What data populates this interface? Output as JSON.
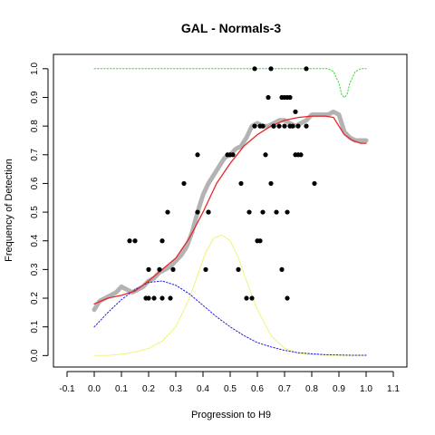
{
  "chart_data": {
    "type": "scatter",
    "title": "GAL - Normals-3",
    "xlabel": "Progression to H9",
    "ylabel": "Frequency of Detection",
    "xlim": [
      -0.15,
      1.15
    ],
    "ylim": [
      -0.04,
      1.05
    ],
    "x_ticks": [
      "-0.1",
      "0.0",
      "0.1",
      "0.2",
      "0.3",
      "0.4",
      "0.5",
      "0.6",
      "0.7",
      "0.8",
      "0.9",
      "1.0",
      "1.1"
    ],
    "y_ticks": [
      "0.0",
      "0.1",
      "0.2",
      "0.3",
      "0.4",
      "0.5",
      "0.6",
      "0.7",
      "0.8",
      "0.9",
      "1.0"
    ],
    "grid": false,
    "legend": "none",
    "colors": {
      "points": "#000000",
      "running_mean": "#b3b3b3",
      "fit": "#e8272b",
      "blue_curve": "#1b1bf0",
      "yellow_curve": "#f2f27a",
      "green_curve": "#33d633"
    },
    "series": [
      {
        "kind": "points",
        "x": [
          0.13,
          0.15,
          0.19,
          0.2,
          0.2,
          0.22,
          0.24,
          0.25,
          0.25,
          0.27,
          0.28,
          0.29,
          0.33,
          0.38,
          0.38,
          0.41,
          0.42,
          0.42,
          0.49,
          0.5,
          0.51,
          0.53,
          0.54,
          0.56,
          0.57,
          0.58,
          0.59,
          0.59,
          0.6,
          0.61,
          0.61,
          0.62,
          0.62,
          0.63,
          0.64,
          0.65,
          0.65,
          0.66,
          0.66,
          0.67,
          0.68,
          0.69,
          0.69,
          0.7,
          0.7,
          0.71,
          0.71,
          0.71,
          0.72,
          0.72,
          0.73,
          0.74,
          0.74,
          0.75,
          0.75,
          0.76,
          0.78,
          0.78,
          0.81
        ],
        "y": [
          0.4,
          0.4,
          0.2,
          0.3,
          0.2,
          0.2,
          0.3,
          0.4,
          0.2,
          0.5,
          0.2,
          0.3,
          0.6,
          0.5,
          0.7,
          0.3,
          0.5,
          0.5,
          0.7,
          0.7,
          0.7,
          0.3,
          0.6,
          0.2,
          0.5,
          0.2,
          0.8,
          1.0,
          0.4,
          0.4,
          0.8,
          0.8,
          0.5,
          0.7,
          0.9,
          0.6,
          1.0,
          0.8,
          0.8,
          0.5,
          0.8,
          0.3,
          0.9,
          0.8,
          0.9,
          0.5,
          0.9,
          0.2,
          0.9,
          0.8,
          0.8,
          0.7,
          0.85,
          0.7,
          0.8,
          0.7,
          0.8,
          1.0,
          0.6
        ]
      },
      {
        "kind": "line",
        "style": "thick-dotted",
        "x": [
          0.0,
          0.02,
          0.04,
          0.06,
          0.08,
          0.1,
          0.12,
          0.14,
          0.16,
          0.18,
          0.2,
          0.22,
          0.24,
          0.26,
          0.28,
          0.3,
          0.32,
          0.34,
          0.36,
          0.38,
          0.4,
          0.42,
          0.44,
          0.46,
          0.48,
          0.5,
          0.52,
          0.54,
          0.56,
          0.58,
          0.6,
          0.62,
          0.64,
          0.66,
          0.68,
          0.7,
          0.72,
          0.74,
          0.76,
          0.78,
          0.8,
          0.82,
          0.84,
          0.86,
          0.88,
          0.9,
          0.92,
          0.94,
          0.96,
          0.98,
          1.0
        ],
        "y": [
          0.16,
          0.19,
          0.2,
          0.21,
          0.22,
          0.24,
          0.23,
          0.22,
          0.23,
          0.24,
          0.26,
          0.27,
          0.29,
          0.3,
          0.31,
          0.33,
          0.35,
          0.38,
          0.43,
          0.5,
          0.56,
          0.6,
          0.63,
          0.66,
          0.69,
          0.7,
          0.72,
          0.73,
          0.76,
          0.8,
          0.81,
          0.8,
          0.8,
          0.81,
          0.82,
          0.82,
          0.81,
          0.8,
          0.81,
          0.82,
          0.84,
          0.84,
          0.84,
          0.84,
          0.85,
          0.84,
          0.78,
          0.76,
          0.75,
          0.75,
          0.75
        ]
      },
      {
        "kind": "line",
        "style": "solid",
        "x": [
          0.0,
          0.05,
          0.1,
          0.15,
          0.2,
          0.25,
          0.3,
          0.35,
          0.4,
          0.45,
          0.5,
          0.55,
          0.6,
          0.65,
          0.7,
          0.75,
          0.8,
          0.85,
          0.88,
          0.9,
          0.92,
          0.95,
          0.98,
          1.0
        ],
        "y": [
          0.18,
          0.2,
          0.21,
          0.225,
          0.26,
          0.3,
          0.34,
          0.41,
          0.5,
          0.6,
          0.67,
          0.73,
          0.77,
          0.8,
          0.82,
          0.83,
          0.835,
          0.835,
          0.83,
          0.8,
          0.77,
          0.75,
          0.74,
          0.74
        ]
      },
      {
        "kind": "line",
        "style": "dotted",
        "x": [
          0.0,
          0.05,
          0.1,
          0.15,
          0.2,
          0.25,
          0.3,
          0.35,
          0.4,
          0.45,
          0.5,
          0.55,
          0.6,
          0.65,
          0.7,
          0.75,
          0.8,
          0.85,
          0.9,
          0.95,
          1.0
        ],
        "y": [
          0.1,
          0.15,
          0.195,
          0.23,
          0.255,
          0.26,
          0.245,
          0.215,
          0.175,
          0.135,
          0.1,
          0.07,
          0.045,
          0.03,
          0.018,
          0.01,
          0.006,
          0.003,
          0.002,
          0.001,
          0.001
        ]
      },
      {
        "kind": "line",
        "style": "solid-thin",
        "x": [
          0.0,
          0.05,
          0.1,
          0.15,
          0.2,
          0.25,
          0.3,
          0.35,
          0.38,
          0.41,
          0.44,
          0.47,
          0.5,
          0.53,
          0.56,
          0.6,
          0.65,
          0.7,
          0.75,
          0.8,
          0.9,
          1.0
        ],
        "y": [
          0.0,
          0.0,
          0.005,
          0.012,
          0.025,
          0.05,
          0.1,
          0.2,
          0.28,
          0.36,
          0.41,
          0.42,
          0.4,
          0.34,
          0.26,
          0.16,
          0.07,
          0.025,
          0.008,
          0.003,
          0.0,
          0.0
        ]
      },
      {
        "kind": "line",
        "style": "dotted",
        "x": [
          0.0,
          0.1,
          0.2,
          0.3,
          0.4,
          0.5,
          0.6,
          0.7,
          0.8,
          0.86,
          0.88,
          0.9,
          0.91,
          0.92,
          0.93,
          0.94,
          0.96,
          0.98,
          1.0
        ],
        "y": [
          1.0,
          1.0,
          1.0,
          1.0,
          1.0,
          1.0,
          1.0,
          1.0,
          1.0,
          1.0,
          0.99,
          0.95,
          0.91,
          0.9,
          0.91,
          0.95,
          0.99,
          1.0,
          1.0
        ]
      }
    ]
  }
}
